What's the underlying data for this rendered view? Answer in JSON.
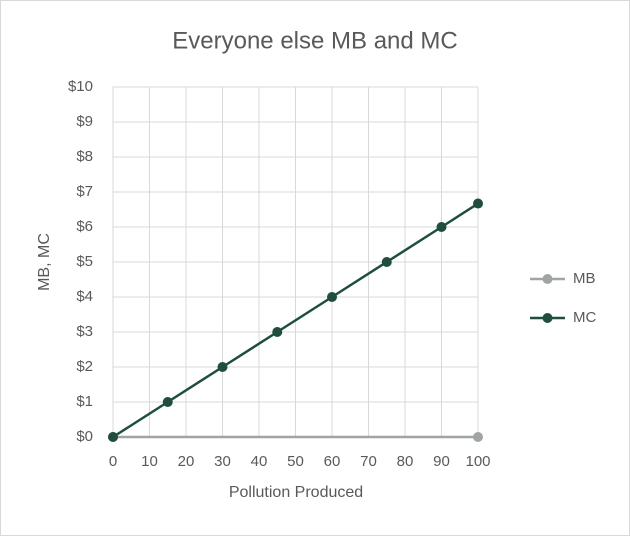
{
  "chart_data": {
    "type": "line",
    "title": "Everyone else MB and MC",
    "x_label": "Pollution Produced",
    "y_label": "MB, MC",
    "series": [
      {
        "name": "MB",
        "color": "#a0a5a3",
        "x": [
          0,
          100
        ],
        "values": [
          0,
          0
        ]
      },
      {
        "name": "MC",
        "color": "#1f4e3d",
        "x": [
          0,
          15,
          30,
          45,
          60,
          75,
          90,
          100
        ],
        "values": [
          0,
          1,
          2,
          3,
          4,
          5,
          6,
          6.67
        ]
      }
    ],
    "xlim": [
      0,
      100
    ],
    "xticks": [
      0,
      10,
      20,
      30,
      40,
      50,
      60,
      70,
      80,
      90,
      100
    ],
    "ylim": [
      0,
      10
    ],
    "yticks": [
      {
        "value": 0,
        "label": "$0"
      },
      {
        "value": 1,
        "label": "$1"
      },
      {
        "value": 2,
        "label": "$2"
      },
      {
        "value": 3,
        "label": "$3"
      },
      {
        "value": 4,
        "label": "$4"
      },
      {
        "value": 5,
        "label": "$5"
      },
      {
        "value": 6,
        "label": "$6"
      },
      {
        "value": 7,
        "label": "$7"
      },
      {
        "value": 8,
        "label": "$8"
      },
      {
        "value": 9,
        "label": "$9"
      },
      {
        "value": 10,
        "label": "$10"
      }
    ],
    "grid": true,
    "legend": "right"
  }
}
